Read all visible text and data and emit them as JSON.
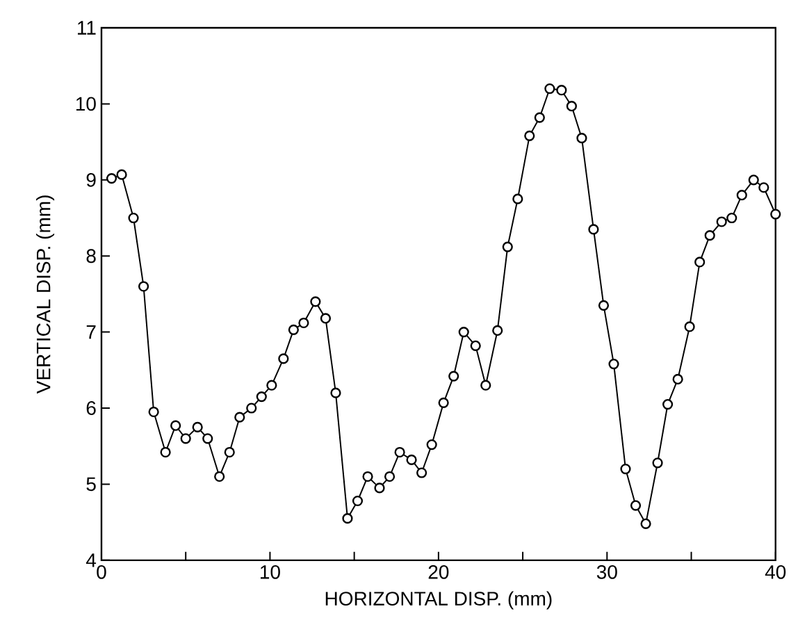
{
  "chart_data": {
    "type": "line",
    "xlabel": "HORIZONTAL DISP.  (mm)",
    "ylabel": "VERTICAL  DISP.  (mm)",
    "series": [
      {
        "color": "#000000",
        "x": [
          0.6,
          1.2,
          1.9,
          2.5,
          3.1,
          3.8,
          4.4,
          5.0,
          5.7,
          6.3,
          7.0,
          7.6,
          8.2,
          8.9,
          9.5,
          10.1,
          10.8,
          11.4,
          12.0,
          12.7,
          13.3,
          13.9,
          14.6,
          15.2,
          15.8,
          16.5,
          17.1,
          17.7,
          18.4,
          19.0,
          19.6,
          20.3,
          20.9,
          21.5,
          22.2,
          22.8,
          23.5,
          24.1,
          24.7,
          25.4,
          26.0,
          26.6,
          27.3,
          27.9,
          28.5,
          29.2,
          29.8,
          30.4,
          31.1,
          31.7,
          32.3,
          33.0,
          33.6,
          34.2,
          34.9,
          35.5,
          36.1,
          36.8,
          37.4,
          38.0,
          38.7,
          39.3,
          40.0
        ],
        "values": [
          9.02,
          9.07,
          8.5,
          7.6,
          5.95,
          5.42,
          5.77,
          5.6,
          5.75,
          5.6,
          5.1,
          5.42,
          5.88,
          6.0,
          6.15,
          6.3,
          6.65,
          7.03,
          7.12,
          7.4,
          7.18,
          6.2,
          4.55,
          4.78,
          5.1,
          4.95,
          5.1,
          5.42,
          5.32,
          5.15,
          5.52,
          6.07,
          6.42,
          7.0,
          6.82,
          6.3,
          7.02,
          8.12,
          8.75,
          9.58,
          9.82,
          10.2,
          10.18,
          9.97,
          9.55,
          8.35,
          7.35,
          6.58,
          5.2,
          4.72,
          4.48,
          5.28,
          6.05,
          6.38,
          7.07,
          7.92,
          8.27,
          8.45,
          8.5,
          8.8,
          9.0,
          8.9,
          8.55
        ]
      }
    ],
    "xlim": [
      0,
      40
    ],
    "ylim": [
      4,
      11
    ],
    "xticks": [
      0,
      {
        "value": 5,
        "label": null
      },
      10,
      {
        "value": 15,
        "label": null
      },
      20,
      {
        "value": 25,
        "label": null
      },
      30,
      {
        "value": 35,
        "label": null
      },
      40
    ],
    "yticks": [
      4,
      5,
      6,
      7,
      8,
      9,
      10,
      11
    ],
    "marker": "circle",
    "line_style": "solid"
  }
}
